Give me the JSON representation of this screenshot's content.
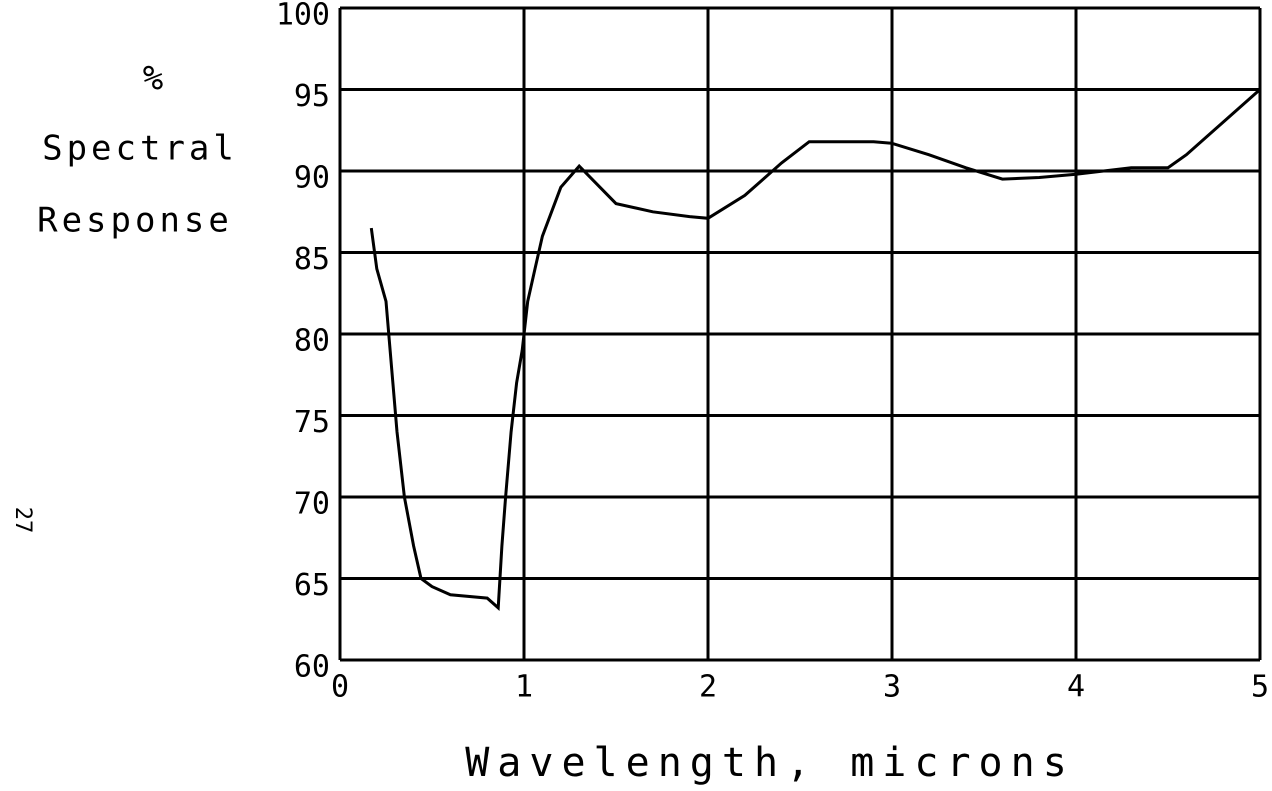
{
  "page_number": "27",
  "chart_data": {
    "type": "line",
    "ylabel": [
      "%",
      "Spectral",
      "Response"
    ],
    "xlabel": "Wavelength, microns",
    "x": [
      0.17,
      0.2,
      0.25,
      0.28,
      0.31,
      0.35,
      0.4,
      0.44,
      0.5,
      0.6,
      0.8,
      0.86,
      0.88,
      0.9,
      0.93,
      0.96,
      0.99,
      1.02,
      1.06,
      1.1,
      1.2,
      1.3,
      1.5,
      1.7,
      1.9,
      2.0,
      2.2,
      2.4,
      2.55,
      2.9,
      3.0,
      3.2,
      3.4,
      3.6,
      3.8,
      4.0,
      4.3,
      4.5,
      4.6,
      4.8,
      5.0
    ],
    "series": [
      {
        "color": "#000000",
        "values": [
          86.5,
          84,
          82,
          78,
          74,
          70,
          67,
          65,
          64.5,
          64,
          63.8,
          63.2,
          67,
          70,
          74,
          77,
          79,
          82,
          84,
          86,
          89,
          90.3,
          88,
          87.5,
          87.2,
          87.1,
          88.5,
          90.5,
          91.8,
          91.8,
          91.7,
          91,
          90.2,
          89.5,
          89.6,
          89.8,
          90.2,
          90.2,
          91,
          93,
          95
        ]
      }
    ],
    "xlim": [
      0,
      5
    ],
    "xticks": [
      0,
      1,
      2,
      3,
      4,
      5
    ],
    "ylim": [
      60,
      100
    ],
    "yticks": [
      60,
      65,
      70,
      75,
      80,
      85,
      90,
      95,
      100
    ],
    "grid": true
  }
}
